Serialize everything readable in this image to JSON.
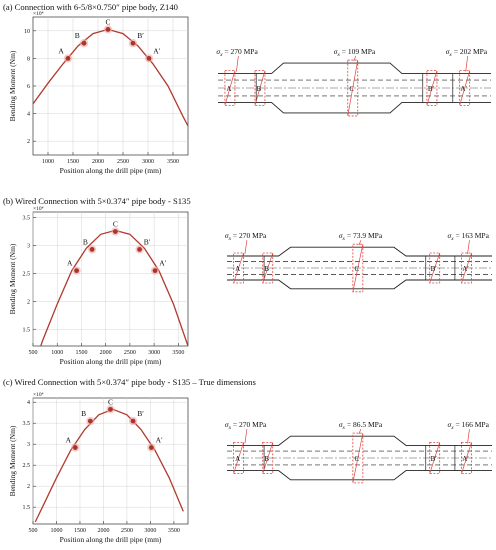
{
  "colors": {
    "curve": "#b03a2e",
    "point": "#a9362a",
    "highlight": "#f2a6a6",
    "marker": "#e0443e",
    "grid": "#d4d4d4",
    "pipe": "#222222"
  },
  "panels": [
    {
      "caption": "(a) Connection with 6-5/8×0.750″ pipe body, Z140",
      "chart_data": {
        "type": "line",
        "xlabel": "Position along the drill pipe (mm)",
        "ylabel": "Bending Moment (Nm)",
        "exponent": "×10⁴",
        "xlim": [
          700,
          3800
        ],
        "ylim": [
          1,
          11
        ],
        "xticks": [
          1000,
          1500,
          2000,
          2500,
          3000,
          3500
        ],
        "yticks": [
          2,
          4,
          6,
          8,
          10
        ],
        "series": [
          {
            "x": [
              700,
              1000,
              1300,
              1600,
              1900,
              2200,
              2500,
              2800,
              3100,
              3400,
              3700,
              3800
            ],
            "y": [
              4.7,
              6.2,
              7.6,
              8.9,
              9.8,
              10.1,
              9.8,
              8.9,
              7.6,
              6.0,
              3.8,
              3.1
            ]
          }
        ],
        "points": [
          {
            "label": "A",
            "x": 1400,
            "y": 8.0
          },
          {
            "label": "B",
            "x": 1720,
            "y": 9.1
          },
          {
            "label": "C",
            "x": 2200,
            "y": 10.1
          },
          {
            "label": "B′",
            "x": 2700,
            "y": 9.1
          },
          {
            "label": "A′",
            "x": 3020,
            "y": 8.0
          }
        ]
      },
      "stresses": [
        {
          "label": "σ",
          "sub": "x",
          "value": "= 270 MPa"
        },
        {
          "label": "σ",
          "sub": "x",
          "value": "= 109 MPa"
        },
        {
          "label": "σ",
          "sub": "x",
          "value": "= 202 MPa"
        }
      ],
      "section_labels": [
        "A",
        "B",
        "C",
        "B′",
        "A′"
      ]
    },
    {
      "caption": "(b) Wired Connection with 5×0.374″ pipe body - S135",
      "chart_data": {
        "type": "line",
        "xlabel": "Position along the drill pipe (mm)",
        "ylabel": "Bending Moment (Nm)",
        "exponent": "×10⁴",
        "xlim": [
          500,
          3700
        ],
        "ylim": [
          1.2,
          3.6
        ],
        "xticks": [
          500,
          1000,
          1500,
          2000,
          2500,
          3000,
          3500
        ],
        "yticks": [
          1.5,
          2,
          2.5,
          3,
          3.5
        ],
        "series": [
          {
            "x": [
              500,
              700,
              1000,
              1300,
              1600,
              1900,
              2200,
              2500,
              2800,
              3100,
              3400,
              3700
            ],
            "y": [
              0.8,
              1.3,
              1.95,
              2.55,
              2.95,
              3.2,
              3.27,
              3.2,
              2.95,
              2.55,
              1.95,
              1.2
            ]
          }
        ],
        "points": [
          {
            "label": "A",
            "x": 1400,
            "y": 2.55
          },
          {
            "label": "B",
            "x": 1720,
            "y": 2.93
          },
          {
            "label": "C",
            "x": 2200,
            "y": 3.25
          },
          {
            "label": "B′",
            "x": 2700,
            "y": 2.93
          },
          {
            "label": "A′",
            "x": 3020,
            "y": 2.55
          }
        ]
      },
      "stresses": [
        {
          "label": "σ",
          "sub": "x",
          "value": "= 270 MPa"
        },
        {
          "label": "σ",
          "sub": "x",
          "value": "= 73.9 MPa"
        },
        {
          "label": "σ",
          "sub": "x",
          "value": "= 163 MPa"
        }
      ],
      "section_labels": [
        "A",
        "B",
        "C",
        "B′",
        "A′"
      ]
    },
    {
      "caption": "(c) Wired Connection with 5×0.374″ pipe body - S135 – True dimensions",
      "chart_data": {
        "type": "line",
        "xlabel": "Position along the drill pipe (mm)",
        "ylabel": "Bending Moment (Nm)",
        "exponent": "×10⁴",
        "xlim": [
          500,
          3800
        ],
        "ylim": [
          1.1,
          4.1
        ],
        "xticks": [
          500,
          1000,
          1500,
          2000,
          2500,
          3000,
          3500
        ],
        "yticks": [
          1.5,
          2,
          2.5,
          3,
          3.5,
          4
        ],
        "series": [
          {
            "x": [
              550,
              700,
              1000,
              1300,
              1600,
              1900,
              2200,
              2500,
              2800,
              3100,
              3400,
              3700
            ],
            "y": [
              1.15,
              1.5,
              2.2,
              2.85,
              3.35,
              3.7,
              3.83,
              3.7,
              3.35,
              2.85,
              2.2,
              1.4
            ]
          }
        ],
        "points": [
          {
            "label": "A",
            "x": 1400,
            "y": 2.92
          },
          {
            "label": "B",
            "x": 1720,
            "y": 3.55
          },
          {
            "label": "C",
            "x": 2150,
            "y": 3.83
          },
          {
            "label": "B′",
            "x": 2630,
            "y": 3.55
          },
          {
            "label": "A′",
            "x": 3020,
            "y": 2.92
          }
        ]
      },
      "stresses": [
        {
          "label": "σ",
          "sub": "x",
          "value": "= 270 MPa"
        },
        {
          "label": "σ",
          "sub": "x",
          "value": "= 86.5 MPa"
        },
        {
          "label": "σ",
          "sub": "x",
          "value": "= 166 MPa"
        }
      ],
      "section_labels": [
        "A",
        "B",
        "C",
        "B′",
        "A′"
      ]
    }
  ]
}
